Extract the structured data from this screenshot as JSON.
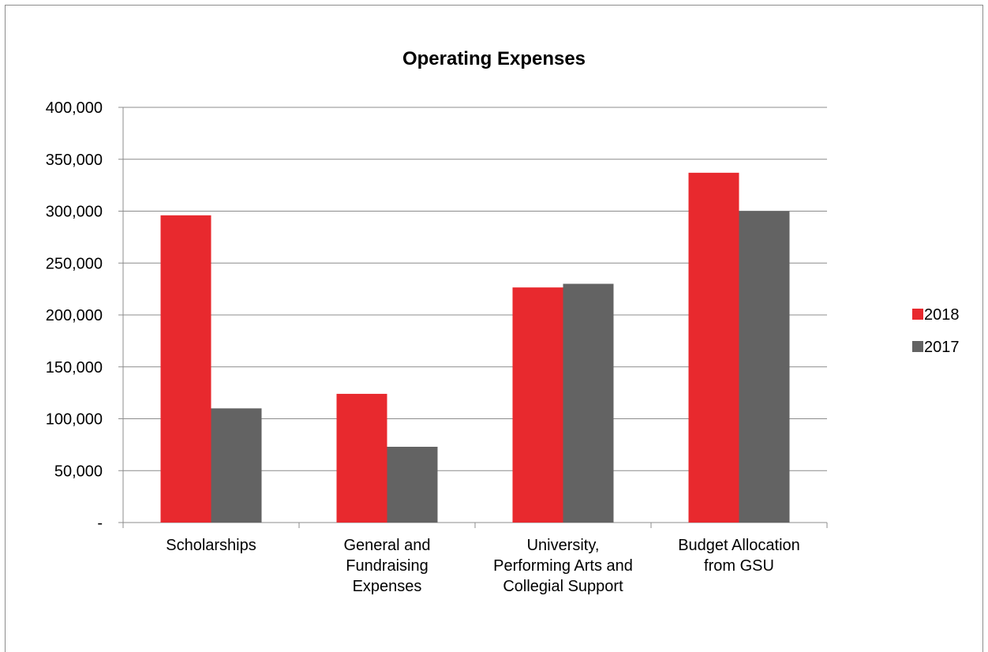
{
  "chart_data": {
    "type": "bar",
    "title": "Operating Expenses",
    "xlabel": "",
    "ylabel": "",
    "categories": [
      [
        "Scholarships"
      ],
      [
        "General and",
        "Fundraising",
        "Expenses"
      ],
      [
        "University,",
        "Performing Arts and",
        "Collegial Support"
      ],
      [
        "Budget Allocation",
        "from GSU"
      ]
    ],
    "series": [
      {
        "name": "2018",
        "color": "#e8292e",
        "values": [
          296000,
          124000,
          226500,
          337000
        ]
      },
      {
        "name": "2017",
        "color": "#636363",
        "values": [
          110000,
          73000,
          230000,
          300000
        ]
      }
    ],
    "ylim": [
      0,
      400000
    ],
    "yticks": [
      0,
      50000,
      100000,
      150000,
      200000,
      250000,
      300000,
      350000,
      400000
    ],
    "ytick_labels": [
      "-",
      "50,000",
      "100,000",
      "150,000",
      "200,000",
      "250,000",
      "300,000",
      "350,000",
      "400,000"
    ],
    "grid": true,
    "legend_position": "right"
  }
}
